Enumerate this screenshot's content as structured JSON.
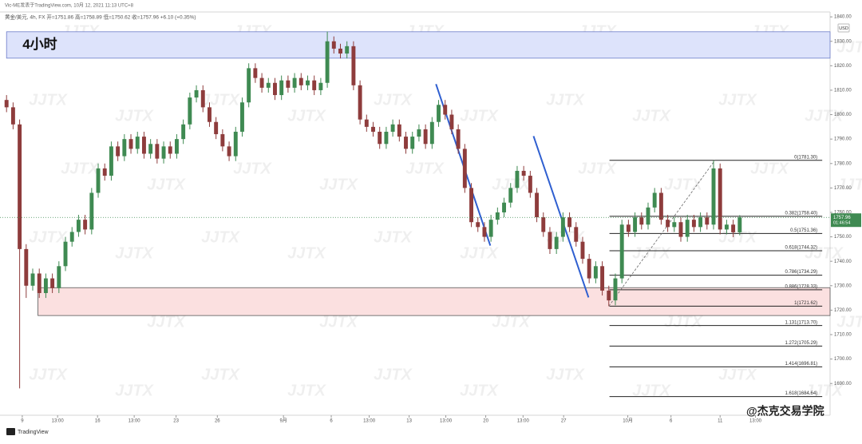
{
  "chart_data": {
    "type": "candlestick",
    "title": "Vic-ME发表于TradingView.com, 10月 12, 2021 11:13 UTC+8",
    "subtitle": "黄金/美元, 4h, FX 开=1751.86 高=1758.89 低=1750.62 收=1757.96 +6.10 (+0.35%)",
    "y_unit": "USD",
    "countdown": "01:46:54",
    "logo": "TradingView",
    "watermark": "JJTX",
    "signature": "@杰克交易学院",
    "up_color": "#3f8a52",
    "down_color": "#8e3c3c",
    "open": [
      1806,
      1803,
      1796,
      1745,
      1730,
      1735,
      1727,
      1733,
      1729,
      1738,
      1748,
      1752,
      1757,
      1753,
      1768,
      1778,
      1775,
      1787,
      1783,
      1790,
      1786,
      1791,
      1784,
      1788,
      1782,
      1787,
      1784,
      1790,
      1796,
      1807,
      1810,
      1803,
      1797,
      1792,
      1787,
      1783,
      1793,
      1805,
      1819,
      1815,
      1811,
      1813,
      1808,
      1814,
      1811,
      1815,
      1812,
      1814,
      1810,
      1813,
      1830,
      1827,
      1825,
      1828,
      1812,
      1798,
      1795,
      1793,
      1788,
      1793,
      1796,
      1791,
      1786,
      1791,
      1794,
      1788,
      1797,
      1804,
      1800,
      1794,
      1786,
      1770,
      1756,
      1754,
      1750,
      1757,
      1760,
      1764,
      1770,
      1777,
      1775,
      1768,
      1758,
      1752,
      1745,
      1750,
      1758,
      1754,
      1748,
      1741,
      1733,
      1738,
      1728,
      1724,
      1733,
      1755,
      1752,
      1758,
      1755,
      1762,
      1768,
      1757,
      1754,
      1756,
      1750,
      1757,
      1754,
      1758,
      1755,
      1778,
      1753,
      1755,
      1751.86
    ],
    "high": [
      1808,
      1805,
      1798,
      1747,
      1737,
      1737,
      1735,
      1735,
      1740,
      1750,
      1754,
      1759,
      1759,
      1770,
      1780,
      1780,
      1789,
      1789,
      1792,
      1792,
      1793,
      1793,
      1790,
      1790,
      1789,
      1789,
      1792,
      1798,
      1809,
      1812,
      1812,
      1805,
      1799,
      1794,
      1789,
      1795,
      1807,
      1821,
      1821,
      1817,
      1815,
      1815,
      1816,
      1816,
      1817,
      1817,
      1816,
      1816,
      1815,
      1834,
      1832,
      1829,
      1830,
      1830,
      1814,
      1800,
      1797,
      1795,
      1795,
      1798,
      1798,
      1793,
      1793,
      1796,
      1796,
      1799,
      1806,
      1806,
      1802,
      1796,
      1788,
      1772,
      1758,
      1756,
      1759,
      1762,
      1766,
      1772,
      1779,
      1779,
      1777,
      1770,
      1760,
      1754,
      1752,
      1760,
      1760,
      1756,
      1750,
      1743,
      1740,
      1740,
      1730,
      1735,
      1757,
      1757,
      1760,
      1760,
      1764,
      1770,
      1770,
      1759,
      1758,
      1758,
      1759,
      1759,
      1760,
      1760,
      1781.3,
      1780,
      1757,
      1757,
      1758.89
    ],
    "low": [
      1801,
      1794,
      1688,
      1725,
      1728,
      1725,
      1725,
      1727,
      1727,
      1736,
      1746,
      1750,
      1751,
      1751,
      1766,
      1773,
      1773,
      1781,
      1781,
      1784,
      1784,
      1782,
      1782,
      1780,
      1780,
      1782,
      1782,
      1788,
      1794,
      1805,
      1801,
      1795,
      1790,
      1785,
      1781,
      1781,
      1791,
      1803,
      1813,
      1809,
      1809,
      1806,
      1806,
      1809,
      1809,
      1810,
      1810,
      1808,
      1808,
      1811,
      1825,
      1823,
      1823,
      1810,
      1796,
      1793,
      1791,
      1786,
      1786,
      1791,
      1789,
      1784,
      1784,
      1789,
      1786,
      1786,
      1795,
      1798,
      1792,
      1784,
      1768,
      1754,
      1752,
      1748,
      1748,
      1755,
      1758,
      1762,
      1768,
      1773,
      1766,
      1756,
      1750,
      1743,
      1743,
      1748,
      1752,
      1746,
      1739,
      1731,
      1731,
      1726,
      1721.62,
      1722,
      1731,
      1750,
      1750,
      1753,
      1753,
      1760,
      1755,
      1752,
      1752,
      1748,
      1748,
      1752,
      1752,
      1753,
      1753,
      1751,
      1751,
      1749.86,
      1750.62
    ],
    "close": [
      1803,
      1796,
      1745,
      1730,
      1735,
      1727,
      1733,
      1729,
      1738,
      1748,
      1752,
      1757,
      1753,
      1768,
      1778,
      1775,
      1787,
      1783,
      1790,
      1786,
      1791,
      1784,
      1788,
      1782,
      1787,
      1784,
      1790,
      1796,
      1807,
      1810,
      1803,
      1797,
      1792,
      1787,
      1783,
      1793,
      1805,
      1819,
      1815,
      1811,
      1813,
      1808,
      1814,
      1811,
      1815,
      1812,
      1814,
      1810,
      1813,
      1830,
      1827,
      1825,
      1828,
      1812,
      1798,
      1795,
      1793,
      1788,
      1793,
      1796,
      1791,
      1786,
      1791,
      1794,
      1788,
      1797,
      1804,
      1800,
      1794,
      1786,
      1770,
      1756,
      1754,
      1750,
      1757,
      1760,
      1764,
      1770,
      1777,
      1775,
      1768,
      1758,
      1752,
      1745,
      1750,
      1758,
      1754,
      1748,
      1741,
      1733,
      1738,
      1728,
      1724,
      1733,
      1755,
      1752,
      1758,
      1755,
      1762,
      1768,
      1757,
      1754,
      1756,
      1750,
      1757,
      1754,
      1758,
      1755,
      1778,
      1753,
      1755,
      1751.86,
      1757.96
    ],
    "xlim": [
      -1,
      125.8
    ],
    "xticks": [
      {
        "value": 2.4,
        "label": "9"
      },
      {
        "value": 7.8,
        "label": "13:00"
      },
      {
        "value": 13.9,
        "label": "16"
      },
      {
        "value": 19.5,
        "label": "13:00"
      },
      {
        "value": 25.9,
        "label": "23"
      },
      {
        "value": 32.2,
        "label": "26"
      },
      {
        "value": 42.3,
        "label": "9月"
      },
      {
        "value": 49.6,
        "label": "6"
      },
      {
        "value": 55.4,
        "label": "13:00"
      },
      {
        "value": 61.5,
        "label": "13"
      },
      {
        "value": 67.1,
        "label": "13:00"
      },
      {
        "value": 73.2,
        "label": "20"
      },
      {
        "value": 78.9,
        "label": "13:00"
      },
      {
        "value": 85.1,
        "label": "27"
      },
      {
        "value": 94.9,
        "label": "10月"
      },
      {
        "value": 101.5,
        "label": "6"
      },
      {
        "value": 109,
        "label": "11"
      },
      {
        "value": 114.4,
        "label": "13:00"
      }
    ],
    "ylim": [
      1677,
      1842
    ],
    "yticks": [
      {
        "value": 1690,
        "label": "1690.00"
      },
      {
        "value": 1700,
        "label": "1700.00"
      },
      {
        "value": 1710,
        "label": "1710.00"
      },
      {
        "value": 1720,
        "label": "1720.00"
      },
      {
        "value": 1730,
        "label": "1730.00"
      },
      {
        "value": 1740,
        "label": "1740.00"
      },
      {
        "value": 1750,
        "label": "1750.00"
      },
      {
        "value": 1760,
        "label": "1760.00"
      },
      {
        "value": 1770,
        "label": "1770.00"
      },
      {
        "value": 1780,
        "label": "1780.00"
      },
      {
        "value": 1790,
        "label": "1790.00"
      },
      {
        "value": 1800,
        "label": "1800.00"
      },
      {
        "value": 1810,
        "label": "1810.00"
      },
      {
        "value": 1820,
        "label": "1820.00"
      },
      {
        "value": 1830,
        "label": "1830.00"
      },
      {
        "value": 1840,
        "label": "1840.00"
      }
    ],
    "zones": [
      {
        "label": "4小时",
        "x": [
          0,
          125.8
        ],
        "y": [
          1823.1,
          1833.9
        ],
        "color": "#dde3fb",
        "border": "#6b7cc9"
      },
      {
        "x": [
          4.8,
          125.8
        ],
        "y": [
          1717.8,
          1729.2
        ],
        "color": "#fbe0e0",
        "border": "#555555"
      }
    ],
    "trendlines": [
      {
        "x": [
          65.6,
          73.9
        ],
        "y": [
          1812.5,
          1746.4
        ],
        "color": "#2f5fd0"
      },
      {
        "x": [
          80.5,
          88.9
        ],
        "y": [
          1791.2,
          1725.2
        ],
        "color": "#2f5fd0"
      }
    ],
    "fib_anchor": {
      "x": [
        92,
        108.2
      ],
      "y": [
        1721.62,
        1781.3
      ]
    },
    "fib": {
      "x": [
        92.1,
        124.6
      ],
      "levels": [
        {
          "value": 1781.3,
          "label": "0(1781.30)"
        },
        {
          "value": 1758.4,
          "label": "0.382(1758.40)"
        },
        {
          "value": 1751.36,
          "label": "0.5(1751.36)"
        },
        {
          "value": 1744.32,
          "label": "0.618(1744.32)"
        },
        {
          "value": 1734.29,
          "label": "0.786(1734.29)"
        },
        {
          "value": 1728.33,
          "label": "0.886(1728.33)"
        },
        {
          "value": 1721.62,
          "label": "1(1721.62)"
        },
        {
          "value": 1713.7,
          "label": "1.131(1713.70)"
        },
        {
          "value": 1705.29,
          "label": "1.272(1705.29)"
        },
        {
          "value": 1696.81,
          "label": "1.414(1696.81)"
        },
        {
          "value": 1684.64,
          "label": "1.618(1684.64)"
        }
      ]
    }
  }
}
